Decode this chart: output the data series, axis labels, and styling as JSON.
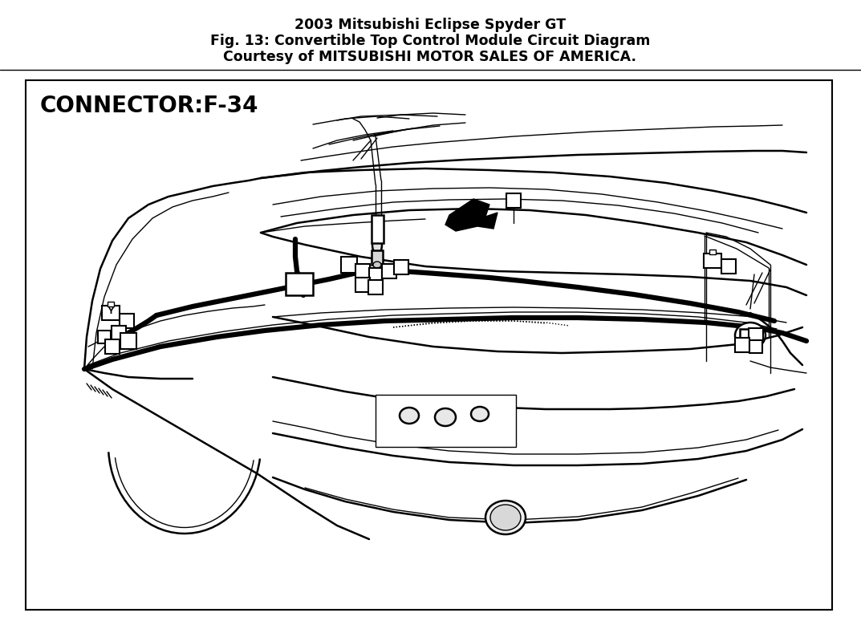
{
  "title_line1": "2003 Mitsubishi Eclipse Spyder GT",
  "title_line2": "Fig. 13: Convertible Top Control Module Circuit Diagram",
  "title_line3": "Courtesy of MITSUBISHI MOTOR SALES OF AMERICA.",
  "title_fontsize": 12.5,
  "connector_label": "CONNECTOR:F-34",
  "connector_fontsize": 20,
  "bg_color": "#ffffff",
  "line_color": "#000000",
  "fig_width": 10.73,
  "fig_height": 7.79,
  "dpi": 100
}
